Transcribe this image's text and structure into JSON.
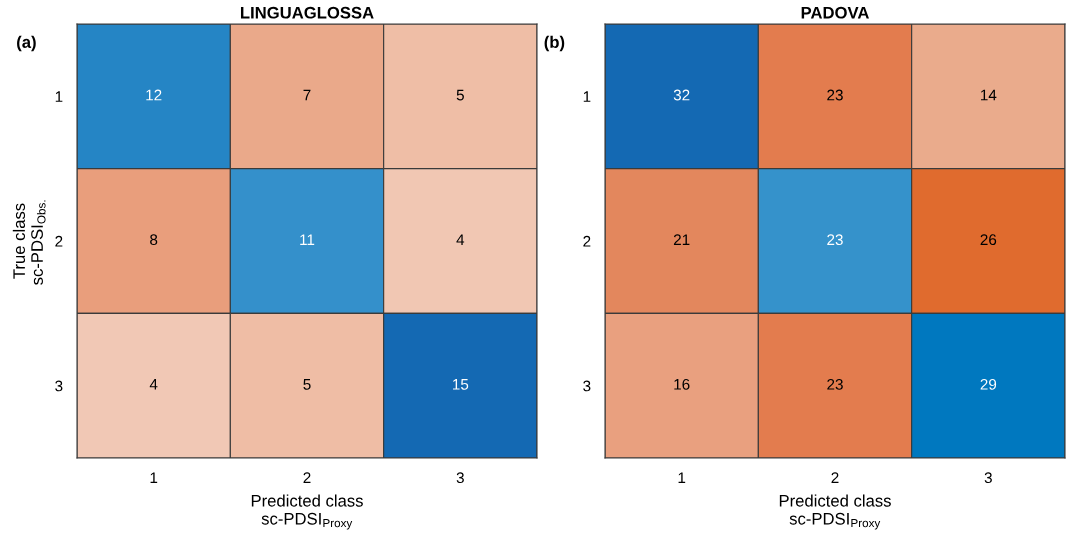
{
  "chart_data": [
    {
      "type": "heatmap",
      "title": "LINGUAGLOSSA",
      "xlabel": "Predicted class\nsc-PDSI$_{Proxy}$",
      "ylabel": "True class\nsc-PDSI$_{Obs.}$",
      "annotations": [
        "(a)"
      ],
      "categories": [
        "1",
        "2",
        "3"
      ],
      "y_categories": [
        "1",
        "2",
        "3"
      ],
      "cells": [
        [
          12,
          7,
          5
        ],
        [
          8,
          11,
          4
        ],
        [
          4,
          5,
          15
        ]
      ],
      "colors": [
        [
          "#2585c5",
          "#eaa98a",
          "#efbea6"
        ],
        [
          "#e99e7c",
          "#3490cb",
          "#f1c7b3"
        ],
        [
          "#f1c8b5",
          "#efbda5",
          "#1469b3"
        ]
      ],
      "data_labels": true
    },
    {
      "type": "heatmap",
      "title": "PADOVA",
      "xlabel": "Predicted class\nsc-PDSI$_{Proxy}$",
      "annotations": [
        "(b)"
      ],
      "categories": [
        "1",
        "2",
        "3"
      ],
      "y_categories": [
        "1",
        "2",
        "3"
      ],
      "cells": [
        [
          32,
          23,
          14
        ],
        [
          21,
          23,
          26
        ],
        [
          16,
          23,
          29
        ]
      ],
      "colors": [
        [
          "#1469b3",
          "#e37c4e",
          "#eaab8c"
        ],
        [
          "#e3875d",
          "#3592cb",
          "#e06b2e"
        ],
        [
          "#e9a07f",
          "#e37c4e",
          "#0078bf"
        ]
      ],
      "data_labels": true
    }
  ]
}
